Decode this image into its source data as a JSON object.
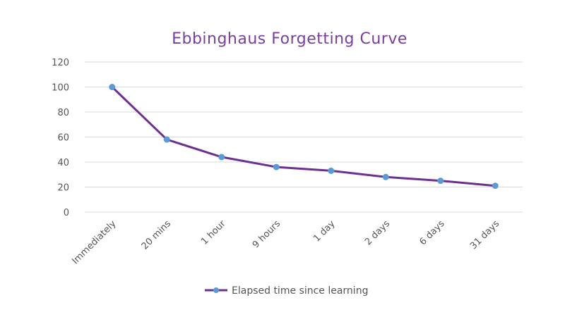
{
  "chart_data": {
    "type": "line",
    "title": "Ebbinghaus Forgetting Curve",
    "xlabel": "",
    "ylabel": "",
    "categories": [
      "Immediately",
      "20 mins",
      "1 hour",
      "9 hours",
      "1 day",
      "2 days",
      "6 days",
      "31 days"
    ],
    "series": [
      {
        "name": "Elapsed time since learning",
        "values": [
          100,
          58,
          44,
          36,
          33,
          28,
          25,
          21
        ]
      }
    ],
    "ylim": [
      0,
      120
    ],
    "yticks": [
      "0",
      "20",
      "40",
      "60",
      "80",
      "100",
      "120"
    ],
    "grid": true,
    "legend_position": "bottom",
    "colors": {
      "line": "#6f2f91",
      "marker": "#5b9bd5",
      "title": "#7a3e9d",
      "grid": "#d9d9d9",
      "text": "#555555"
    }
  }
}
